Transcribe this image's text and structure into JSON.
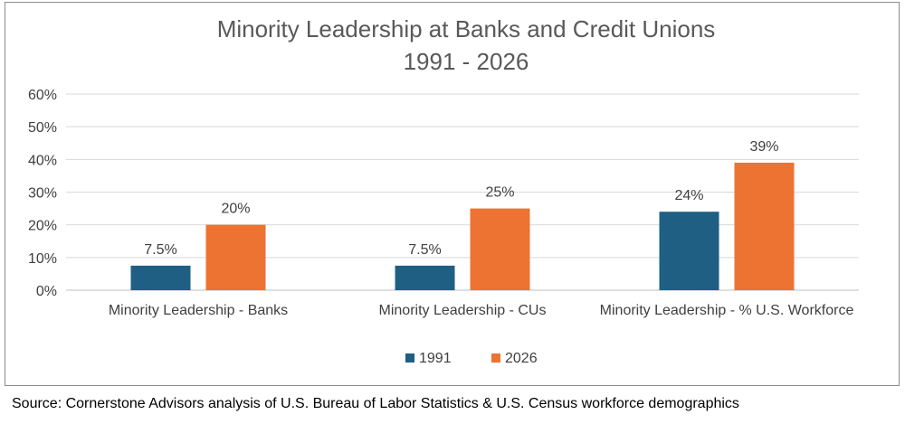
{
  "chart_data": {
    "type": "bar",
    "title": [
      "Minority Leadership at Banks and Credit Unions",
      "1991 - 2026"
    ],
    "categories": [
      "Minority Leadership - Banks",
      "Minority Leadership - CUs",
      "Minority Leadership - % U.S. Workforce"
    ],
    "series": [
      {
        "name": "1991",
        "values": [
          7.5,
          7.5,
          24
        ],
        "labels": [
          "7.5%",
          "7.5%",
          "24%"
        ],
        "color": "#1f5f84"
      },
      {
        "name": "2026",
        "values": [
          20,
          25,
          39
        ],
        "labels": [
          "20%",
          "25%",
          "39%"
        ],
        "color": "#ed7333"
      }
    ],
    "yticks": [
      "0%",
      "10%",
      "20%",
      "30%",
      "40%",
      "50%",
      "60%"
    ],
    "ylim": [
      0,
      60
    ],
    "grid": true,
    "legend_position": "bottom"
  },
  "source_note": "Source: Cornerstone Advisors analysis of U.S. Bureau of Labor Statistics & U.S. Census workforce demographics"
}
